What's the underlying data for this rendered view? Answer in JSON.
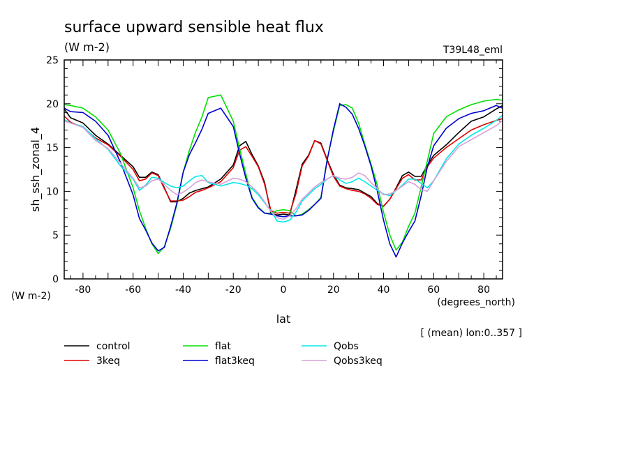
{
  "chart_data": {
    "type": "line",
    "title": "surface upward sensible heat flux",
    "units_label": "(W m-2)",
    "run_label": "T39L48_eml",
    "ylabel": "sh_ssh_zonal_4",
    "y_units": "(W m-2)",
    "xlabel": "lat",
    "x_units": "(degrees_north)",
    "note": "[ (mean) lon:0..357 ]",
    "xlim": [
      -87.5,
      87.5
    ],
    "ylim": [
      0,
      25
    ],
    "x_ticks": [
      -80,
      -60,
      -40,
      -20,
      0,
      20,
      40,
      60,
      80
    ],
    "x_tick_labels": [
      "-80",
      "-60",
      "-40",
      "-20",
      "0",
      "20",
      "40",
      "60",
      "80"
    ],
    "y_ticks": [
      0,
      5,
      10,
      15,
      20,
      25
    ],
    "y_tick_labels": [
      "0",
      "5",
      "10",
      "15",
      "20",
      "25"
    ],
    "grid": false,
    "legend_position": "bottom",
    "x": [
      -87.5,
      -85,
      -80,
      -75,
      -70,
      -65,
      -60,
      -57.5,
      -55,
      -52.5,
      -50,
      -47.5,
      -45,
      -42.5,
      -40,
      -37.5,
      -35,
      -32.5,
      -30,
      -25,
      -20,
      -17.5,
      -15,
      -12.5,
      -10,
      -7.5,
      -5,
      -2.5,
      0,
      2.5,
      5,
      7.5,
      10,
      12.5,
      15,
      17.5,
      20,
      22.5,
      25,
      27.5,
      30,
      32.5,
      35,
      37.5,
      40,
      42.5,
      45,
      47.5,
      50,
      52.5,
      55,
      57.5,
      60,
      65,
      70,
      75,
      80,
      85,
      87.5
    ],
    "series": [
      {
        "name": "control",
        "color": "#000000",
        "values": [
          19.4,
          18.4,
          17.8,
          16.4,
          15.4,
          14.1,
          12.8,
          11.6,
          11.6,
          12.2,
          11.9,
          10.4,
          8.8,
          8.8,
          9.2,
          9.8,
          10.1,
          10.3,
          10.5,
          11.4,
          13.0,
          15.2,
          15.7,
          14.2,
          12.9,
          11.0,
          7.5,
          7.3,
          7.4,
          7.3,
          10.1,
          13.1,
          14.1,
          15.8,
          15.5,
          13.6,
          11.9,
          10.7,
          10.4,
          10.3,
          10.2,
          9.8,
          9.4,
          8.6,
          8.3,
          9.1,
          10.4,
          11.8,
          12.2,
          11.7,
          11.7,
          13.0,
          14.1,
          15.3,
          16.7,
          18.0,
          18.5,
          19.4,
          19.8
        ]
      },
      {
        "name": "3keq",
        "color": "#e00000",
        "values": [
          18.6,
          17.9,
          17.3,
          16.1,
          15.3,
          14.0,
          12.5,
          11.2,
          11.4,
          12.1,
          11.8,
          10.3,
          8.9,
          8.9,
          9.0,
          9.4,
          9.9,
          10.1,
          10.4,
          11.1,
          12.7,
          14.7,
          15.1,
          14.0,
          12.8,
          10.8,
          7.8,
          7.5,
          7.6,
          7.5,
          9.7,
          12.9,
          14.0,
          15.8,
          15.4,
          13.5,
          11.7,
          10.6,
          10.3,
          10.1,
          10.0,
          9.7,
          9.2,
          8.5,
          8.3,
          9.1,
          10.3,
          11.5,
          11.9,
          11.3,
          11.3,
          12.8,
          13.8,
          15.0,
          16.0,
          17.0,
          17.6,
          18.1,
          18.3
        ]
      },
      {
        "name": "flat",
        "color": "#00e000",
        "values": [
          19.9,
          19.8,
          19.5,
          18.5,
          17.0,
          14.3,
          10.4,
          7.8,
          5.8,
          4.0,
          2.9,
          3.7,
          5.8,
          8.5,
          12.2,
          14.7,
          16.8,
          18.5,
          20.7,
          21.0,
          18.0,
          14.9,
          12.0,
          9.3,
          8.2,
          7.5,
          7.5,
          7.8,
          7.9,
          7.8,
          7.2,
          7.4,
          7.9,
          8.5,
          9.3,
          13.7,
          16.9,
          19.8,
          19.9,
          19.5,
          17.8,
          15.4,
          13.1,
          10.7,
          7.6,
          5.0,
          3.3,
          4.2,
          6.0,
          7.5,
          10.5,
          13.5,
          16.6,
          18.5,
          19.3,
          19.9,
          20.3,
          20.5,
          20.4
        ]
      },
      {
        "name": "flat3keq",
        "color": "#0000d0",
        "values": [
          19.5,
          19.1,
          19.0,
          18.0,
          16.4,
          13.3,
          9.6,
          6.9,
          5.6,
          4.1,
          3.2,
          3.6,
          6.0,
          8.7,
          12.2,
          14.2,
          15.6,
          17.1,
          18.9,
          19.5,
          17.4,
          14.3,
          11.5,
          9.2,
          8.1,
          7.5,
          7.4,
          7.2,
          7.1,
          7.2,
          7.2,
          7.3,
          7.8,
          8.5,
          9.2,
          13.6,
          17.1,
          20.0,
          19.6,
          18.8,
          17.2,
          15.2,
          12.9,
          10.0,
          6.7,
          4.0,
          2.5,
          4.1,
          5.4,
          6.6,
          9.5,
          12.8,
          15.2,
          17.2,
          18.3,
          18.9,
          19.2,
          19.8,
          19.5
        ]
      },
      {
        "name": "Qobs",
        "color": "#00e8e8",
        "values": [
          18.2,
          17.8,
          17.4,
          16.0,
          14.8,
          12.9,
          11.4,
          10.1,
          10.7,
          11.6,
          11.5,
          11.0,
          10.6,
          10.4,
          10.6,
          11.2,
          11.7,
          11.8,
          11.0,
          10.6,
          11.0,
          10.9,
          10.7,
          10.3,
          9.6,
          8.7,
          7.8,
          6.6,
          6.5,
          6.7,
          7.6,
          8.9,
          9.6,
          10.3,
          10.8,
          11.4,
          11.8,
          11.3,
          10.9,
          11.1,
          11.5,
          11.1,
          10.6,
          10.1,
          9.7,
          9.5,
          10.1,
          10.7,
          11.4,
          11.4,
          10.9,
          10.4,
          11.2,
          13.7,
          15.4,
          16.4,
          17.2,
          18.1,
          18.7
        ]
      },
      {
        "name": "Qobs3keq",
        "color": "#d8a0d8",
        "values": [
          18.0,
          17.8,
          17.3,
          15.8,
          14.9,
          13.2,
          11.5,
          10.4,
          10.6,
          11.2,
          11.4,
          10.8,
          10.1,
          9.6,
          9.9,
          10.4,
          11.0,
          11.3,
          11.1,
          10.8,
          11.5,
          11.4,
          11.1,
          10.5,
          9.8,
          8.8,
          7.7,
          7.0,
          6.8,
          7.2,
          8.0,
          9.1,
          9.8,
          10.5,
          11.0,
          11.4,
          11.8,
          11.5,
          11.4,
          11.6,
          12.1,
          11.8,
          11.0,
          10.3,
          9.6,
          9.7,
          10.1,
          10.6,
          11.1,
          10.8,
          10.2,
          10.0,
          11.2,
          13.4,
          15.1,
          15.9,
          16.7,
          17.5,
          18.1
        ]
      }
    ]
  }
}
